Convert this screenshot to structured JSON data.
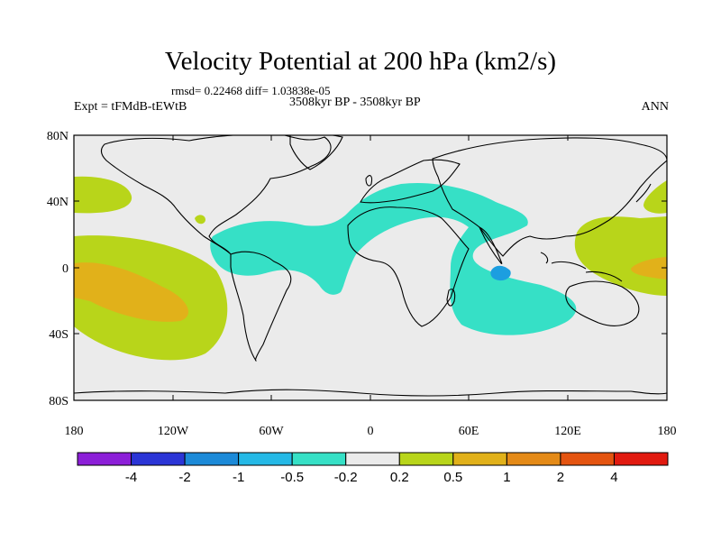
{
  "title": "Velocity Potential at 200 hPa (km2/s)",
  "stats_line": "rmsd= 0.22468 diff= 1.03838e-05",
  "left_label": "Expt = tFMdB-tEWtB",
  "center_label": "3508kyr BP - 3508kyr BP",
  "right_label": "ANN",
  "lat_labels": [
    "80N",
    "40N",
    "0",
    "40S",
    "80S"
  ],
  "lon_labels": [
    "180",
    "120W",
    "60W",
    "0",
    "60E",
    "120E",
    "180"
  ],
  "colorbar": {
    "colors": [
      "#8c1fd8",
      "#2b35d6",
      "#1c8ad8",
      "#25b9e6",
      "#36e0c6",
      "#ebebeb",
      "#b8d51a",
      "#e1b11a",
      "#e48a17",
      "#e45410",
      "#e11a10"
    ],
    "labels": [
      "-4",
      "-2",
      "-1",
      "-0.5",
      "-0.2",
      "0.2",
      "0.5",
      "1",
      "2",
      "4"
    ]
  },
  "colors": {
    "background": "#ebebeb",
    "neg_shade": "#36e0c6",
    "neg_core": "#1c9ee0",
    "pos_light": "#b8d51a",
    "pos_mid": "#e1b11a"
  }
}
